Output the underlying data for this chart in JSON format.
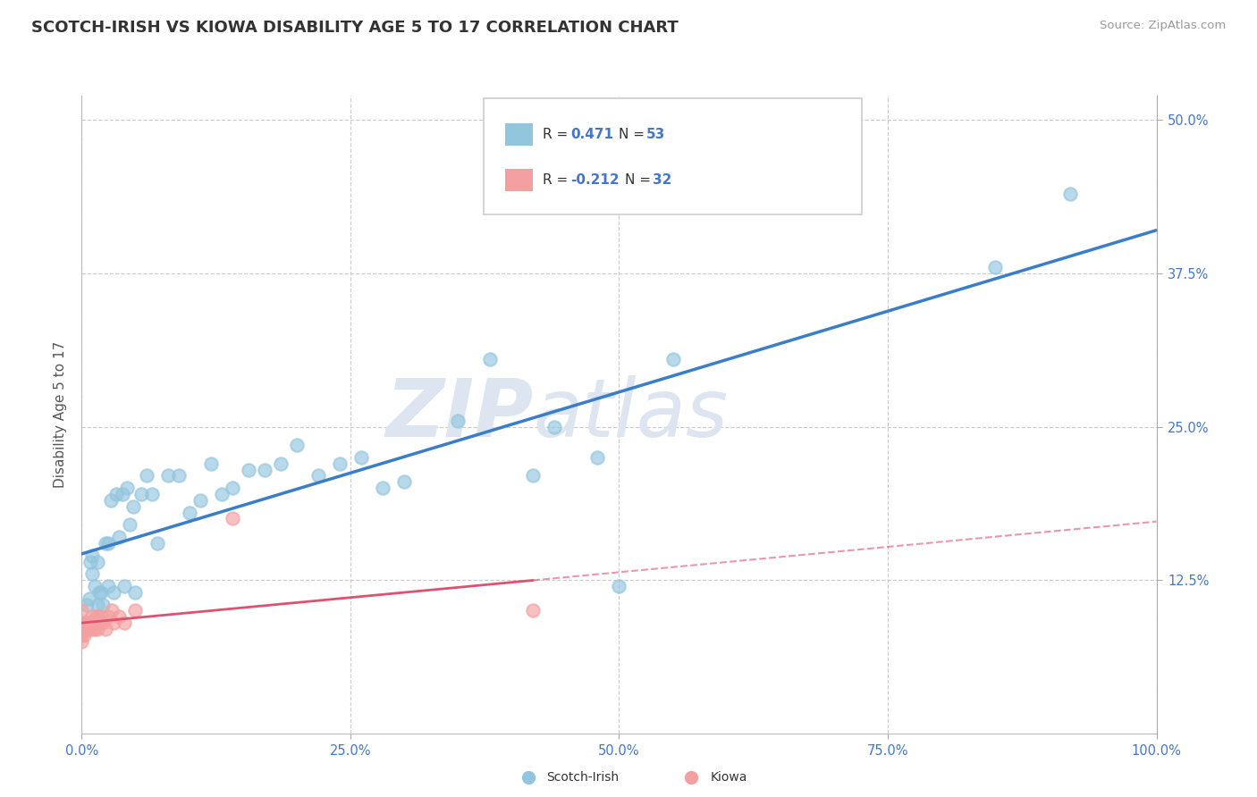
{
  "title": "SCOTCH-IRISH VS KIOWA DISABILITY AGE 5 TO 17 CORRELATION CHART",
  "source": "Source: ZipAtlas.com",
  "ylabel": "Disability Age 5 to 17",
  "xlim": [
    0.0,
    1.0
  ],
  "ylim": [
    0.0,
    0.52
  ],
  "xticks": [
    0.0,
    0.25,
    0.5,
    0.75,
    1.0
  ],
  "xticklabels": [
    "0.0%",
    "25.0%",
    "50.0%",
    "75.0%",
    "100.0%"
  ],
  "ytick_vals": [
    0.125,
    0.25,
    0.375,
    0.5
  ],
  "yticklabels_right": [
    "12.5%",
    "25.0%",
    "37.5%",
    "50.0%"
  ],
  "scotch_irish_r": "0.471",
  "scotch_irish_n": "53",
  "kiowa_r": "-0.212",
  "kiowa_n": "32",
  "scotch_irish_color": "#92c5de",
  "kiowa_color": "#f4a0a0",
  "regression_blue": "#3a7dc9",
  "regression_pink": "#e05070",
  "watermark_color": "#dde5f0",
  "scotch_irish_x": [
    0.005,
    0.007,
    0.008,
    0.01,
    0.01,
    0.012,
    0.015,
    0.015,
    0.016,
    0.018,
    0.02,
    0.022,
    0.025,
    0.025,
    0.027,
    0.03,
    0.032,
    0.035,
    0.038,
    0.04,
    0.042,
    0.045,
    0.048,
    0.05,
    0.055,
    0.06,
    0.065,
    0.07,
    0.08,
    0.09,
    0.1,
    0.11,
    0.12,
    0.13,
    0.14,
    0.155,
    0.17,
    0.185,
    0.2,
    0.22,
    0.24,
    0.26,
    0.28,
    0.3,
    0.35,
    0.38,
    0.42,
    0.44,
    0.48,
    0.5,
    0.55,
    0.85,
    0.92
  ],
  "scotch_irish_y": [
    0.105,
    0.11,
    0.14,
    0.13,
    0.145,
    0.12,
    0.105,
    0.14,
    0.115,
    0.115,
    0.105,
    0.155,
    0.155,
    0.12,
    0.19,
    0.115,
    0.195,
    0.16,
    0.195,
    0.12,
    0.2,
    0.17,
    0.185,
    0.115,
    0.195,
    0.21,
    0.195,
    0.155,
    0.21,
    0.21,
    0.18,
    0.19,
    0.22,
    0.195,
    0.2,
    0.215,
    0.215,
    0.22,
    0.235,
    0.21,
    0.22,
    0.225,
    0.2,
    0.205,
    0.255,
    0.305,
    0.21,
    0.25,
    0.225,
    0.12,
    0.305,
    0.38,
    0.44
  ],
  "kiowa_x": [
    0.0,
    0.0,
    0.0,
    0.0,
    0.0,
    0.0,
    0.002,
    0.003,
    0.004,
    0.005,
    0.006,
    0.007,
    0.008,
    0.009,
    0.01,
    0.01,
    0.012,
    0.013,
    0.015,
    0.015,
    0.017,
    0.018,
    0.02,
    0.022,
    0.025,
    0.028,
    0.03,
    0.035,
    0.04,
    0.05,
    0.14,
    0.42
  ],
  "kiowa_y": [
    0.075,
    0.08,
    0.085,
    0.09,
    0.09,
    0.1,
    0.08,
    0.085,
    0.085,
    0.09,
    0.09,
    0.085,
    0.09,
    0.09,
    0.085,
    0.095,
    0.085,
    0.095,
    0.085,
    0.095,
    0.09,
    0.095,
    0.09,
    0.085,
    0.095,
    0.1,
    0.09,
    0.095,
    0.09,
    0.1,
    0.175,
    0.1
  ],
  "background_color": "#ffffff",
  "grid_color": "#cccccc",
  "title_fontsize": 13,
  "tick_fontsize": 10.5,
  "legend_fontsize": 11,
  "source_fontsize": 9.5
}
